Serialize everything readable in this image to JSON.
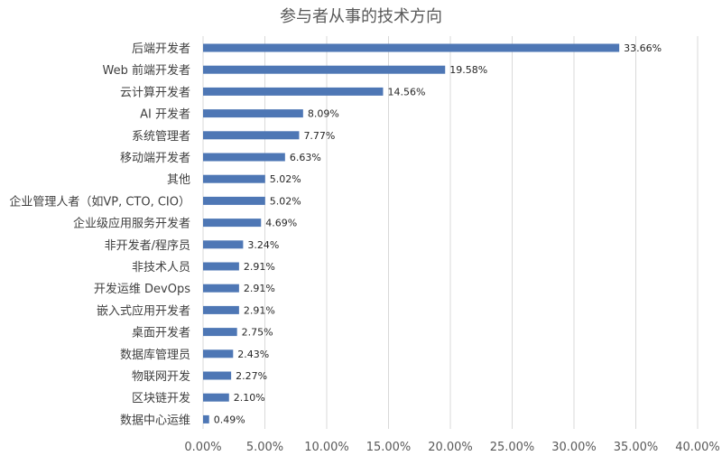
{
  "chart_data": {
    "type": "bar",
    "orientation": "horizontal",
    "title": "参与者从事的技术方向",
    "categories": [
      "后端开发者",
      "Web 前端开发者",
      "云计算开发者",
      "AI 开发者",
      "系统管理者",
      "移动端开发者",
      "其他",
      "企业管理人者（如VP, CTO, CIO）",
      "企业级应用服务开发者",
      "非开发者/程序员",
      "非技术人员",
      "开发运维 DevOps",
      "嵌入式应用开发者",
      "桌面开发者",
      "数据库管理员",
      "物联网开发",
      "区块链开发",
      "数据中心运维"
    ],
    "values": [
      33.66,
      19.58,
      14.56,
      8.09,
      7.77,
      6.63,
      5.02,
      5.02,
      4.69,
      3.24,
      2.91,
      2.91,
      2.91,
      2.75,
      2.43,
      2.27,
      2.1,
      0.49
    ],
    "value_labels": [
      "33.66%",
      "19.58%",
      "14.56%",
      "8.09%",
      "7.77%",
      "6.63%",
      "5.02%",
      "5.02%",
      "4.69%",
      "3.24%",
      "2.91%",
      "2.91%",
      "2.91%",
      "2.75%",
      "2.43%",
      "2.27%",
      "2.10%",
      "0.49%"
    ],
    "xlim": [
      0,
      40
    ],
    "x_ticks": [
      0,
      5,
      10,
      15,
      20,
      25,
      30,
      35,
      40
    ],
    "x_tick_labels": [
      "0.00%",
      "5.00%",
      "10.00%",
      "15.00%",
      "20.00%",
      "25.00%",
      "30.00%",
      "35.00%",
      "40.00%"
    ],
    "grid": true,
    "bar_color": "#4e77b5"
  }
}
